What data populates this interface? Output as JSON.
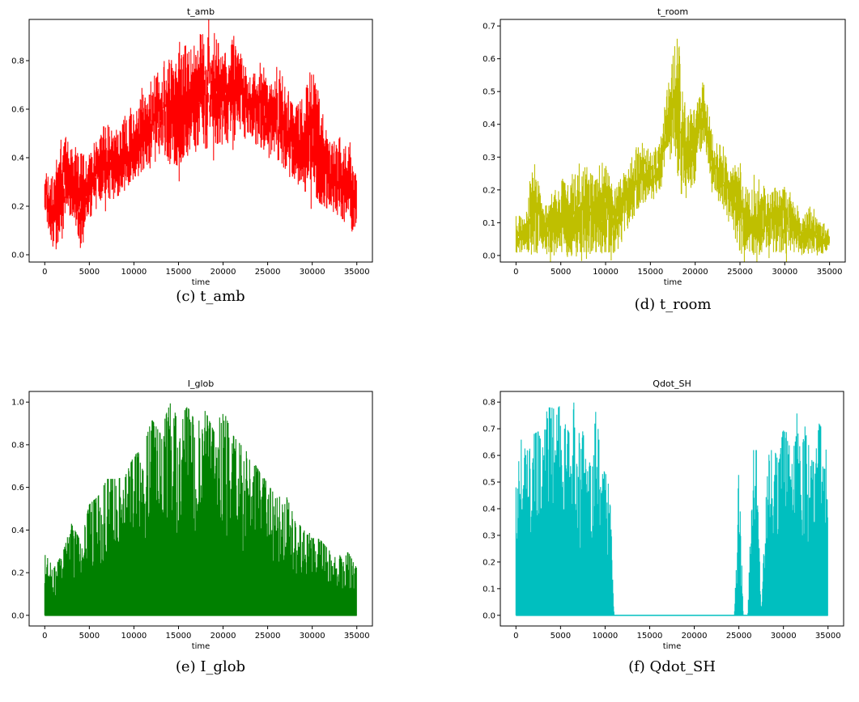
{
  "chart_data": [
    {
      "type": "line",
      "title": "t_amb",
      "xlabel": "time",
      "ylabel": "",
      "caption": "(c) t_amb",
      "color": "#ff0000",
      "xlim": [
        -1750,
        36750
      ],
      "ylim": [
        -0.03,
        0.97
      ],
      "xticks": [
        0,
        5000,
        10000,
        15000,
        20000,
        25000,
        30000,
        35000
      ],
      "yticks": [
        0.0,
        0.2,
        0.4,
        0.6,
        0.8
      ],
      "xtick_labels": [
        "0",
        "5000",
        "10000",
        "15000",
        "20000",
        "25000",
        "30000",
        "35000"
      ],
      "ytick_labels": [
        "0.0",
        "0.2",
        "0.4",
        "0.6",
        "0.8"
      ],
      "series": [
        {
          "x": [
            0,
            1000,
            2000,
            3000,
            4000,
            5000,
            6000,
            7000,
            8000,
            9000,
            10000,
            11000,
            12000,
            13000,
            14000,
            15000,
            16000,
            17000,
            18000,
            19000,
            20000,
            21000,
            22000,
            23000,
            24000,
            25000,
            26000,
            27000,
            28000,
            29000,
            30000,
            31000,
            32000,
            33000,
            34000,
            35000
          ],
          "low": [
            0.17,
            0.02,
            0.13,
            0.17,
            0.05,
            0.15,
            0.2,
            0.23,
            0.23,
            0.3,
            0.3,
            0.35,
            0.39,
            0.42,
            0.4,
            0.36,
            0.44,
            0.45,
            0.46,
            0.45,
            0.47,
            0.48,
            0.52,
            0.5,
            0.45,
            0.42,
            0.4,
            0.36,
            0.33,
            0.26,
            0.26,
            0.21,
            0.18,
            0.17,
            0.12,
            0.09
          ],
          "high": [
            0.33,
            0.29,
            0.48,
            0.42,
            0.4,
            0.39,
            0.46,
            0.54,
            0.48,
            0.55,
            0.58,
            0.66,
            0.66,
            0.75,
            0.78,
            0.82,
            0.83,
            0.87,
            0.94,
            0.86,
            0.82,
            0.87,
            0.82,
            0.73,
            0.77,
            0.69,
            0.72,
            0.69,
            0.6,
            0.65,
            0.77,
            0.58,
            0.46,
            0.45,
            0.45,
            0.3
          ]
        }
      ]
    },
    {
      "type": "line",
      "title": "t_room",
      "xlabel": "time",
      "ylabel": "",
      "caption": "(d) t_room",
      "color": "#bfbf00",
      "xlim": [
        -1750,
        36750
      ],
      "ylim": [
        -0.02,
        0.72
      ],
      "xticks": [
        0,
        5000,
        10000,
        15000,
        20000,
        25000,
        30000,
        35000
      ],
      "yticks": [
        0.0,
        0.1,
        0.2,
        0.3,
        0.4,
        0.5,
        0.6,
        0.7
      ],
      "xtick_labels": [
        "0",
        "5000",
        "10000",
        "15000",
        "20000",
        "25000",
        "30000",
        "35000"
      ],
      "ytick_labels": [
        "0.0",
        "0.1",
        "0.2",
        "0.3",
        "0.4",
        "0.5",
        "0.6",
        "0.7"
      ],
      "series": [
        {
          "x": [
            0,
            1000,
            2000,
            3000,
            4000,
            5000,
            6000,
            7000,
            8000,
            9000,
            10000,
            11000,
            12000,
            13000,
            14000,
            15000,
            16000,
            17000,
            18000,
            19000,
            20000,
            21000,
            22000,
            23000,
            24000,
            25000,
            26000,
            27000,
            28000,
            29000,
            30000,
            31000,
            32000,
            33000,
            34000,
            35000
          ],
          "low": [
            0.01,
            0.01,
            0.01,
            0.01,
            0.01,
            0.01,
            0.01,
            0.01,
            0.01,
            0.01,
            0.01,
            0.01,
            0.08,
            0.12,
            0.17,
            0.17,
            0.2,
            0.33,
            0.25,
            0.15,
            0.25,
            0.36,
            0.19,
            0.15,
            0.1,
            0.01,
            0.01,
            0.01,
            0.01,
            0.01,
            0.01,
            0.01,
            0.01,
            0.01,
            0.01,
            0.01
          ],
          "high": [
            0.12,
            0.1,
            0.29,
            0.14,
            0.18,
            0.23,
            0.21,
            0.25,
            0.26,
            0.23,
            0.27,
            0.2,
            0.25,
            0.28,
            0.35,
            0.3,
            0.34,
            0.52,
            0.68,
            0.4,
            0.45,
            0.52,
            0.36,
            0.33,
            0.25,
            0.26,
            0.18,
            0.24,
            0.17,
            0.21,
            0.2,
            0.15,
            0.12,
            0.14,
            0.09,
            0.08
          ]
        }
      ]
    },
    {
      "type": "area",
      "title": "I_glob",
      "xlabel": "time",
      "ylabel": "",
      "caption": "(e) I_glob",
      "color": "#008000",
      "xlim": [
        -1750,
        36750
      ],
      "ylim": [
        -0.05,
        1.05
      ],
      "xticks": [
        0,
        5000,
        10000,
        15000,
        20000,
        25000,
        30000,
        35000
      ],
      "yticks": [
        0.0,
        0.2,
        0.4,
        0.6,
        0.8,
        1.0
      ],
      "xtick_labels": [
        "0",
        "5000",
        "10000",
        "15000",
        "20000",
        "25000",
        "30000",
        "35000"
      ],
      "ytick_labels": [
        "0.0",
        "0.2",
        "0.4",
        "0.6",
        "0.8",
        "1.0"
      ],
      "series": [
        {
          "x": [
            0,
            1000,
            2000,
            3000,
            4000,
            5000,
            6000,
            7000,
            8000,
            9000,
            10000,
            11000,
            12000,
            13000,
            14000,
            15000,
            16000,
            17000,
            18000,
            19000,
            20000,
            21000,
            22000,
            23000,
            24000,
            25000,
            26000,
            27000,
            28000,
            29000,
            30000,
            31000,
            32000,
            33000,
            34000,
            35000
          ],
          "low": [
            0.0,
            0.0,
            0.0,
            0.0,
            0.0,
            0.0,
            0.0,
            0.0,
            0.0,
            0.0,
            0.0,
            0.0,
            0.0,
            0.0,
            0.0,
            0.0,
            0.0,
            0.0,
            0.0,
            0.0,
            0.0,
            0.0,
            0.0,
            0.0,
            0.0,
            0.0,
            0.0,
            0.0,
            0.0,
            0.0,
            0.0,
            0.0,
            0.0,
            0.0,
            0.0,
            0.0
          ],
          "high": [
            0.33,
            0.22,
            0.29,
            0.43,
            0.35,
            0.52,
            0.56,
            0.64,
            0.64,
            0.65,
            0.75,
            0.78,
            0.92,
            0.85,
            1.0,
            0.92,
            0.98,
            0.9,
            0.96,
            0.86,
            0.97,
            0.85,
            0.8,
            0.75,
            0.68,
            0.62,
            0.55,
            0.57,
            0.46,
            0.4,
            0.38,
            0.35,
            0.3,
            0.28,
            0.3,
            0.22
          ]
        }
      ]
    },
    {
      "type": "area",
      "title": "Qdot_SH",
      "xlabel": "time",
      "ylabel": "",
      "caption": "(f) Qdot_SH",
      "color": "#00bfbf",
      "xlim": [
        -1750,
        36750
      ],
      "ylim": [
        -0.04,
        0.84
      ],
      "xticks": [
        0,
        5000,
        10000,
        15000,
        20000,
        25000,
        30000,
        35000
      ],
      "yticks": [
        0.0,
        0.1,
        0.2,
        0.3,
        0.4,
        0.5,
        0.6,
        0.7,
        0.8
      ],
      "xtick_labels": [
        "0",
        "5000",
        "10000",
        "15000",
        "20000",
        "25000",
        "30000",
        "35000"
      ],
      "ytick_labels": [
        "0.0",
        "0.1",
        "0.2",
        "0.3",
        "0.4",
        "0.5",
        "0.6",
        "0.7",
        "0.8"
      ],
      "series": [
        {
          "x": [
            0,
            500,
            1000,
            1500,
            2000,
            2500,
            3000,
            3500,
            4000,
            4500,
            5000,
            5500,
            6000,
            6500,
            7000,
            7500,
            8000,
            8500,
            9000,
            9500,
            10000,
            10500,
            11000,
            15000,
            20000,
            24500,
            25000,
            25500,
            26000,
            26500,
            27000,
            27500,
            28000,
            28500,
            29000,
            29500,
            30000,
            30500,
            31000,
            31500,
            32000,
            32500,
            33000,
            33500,
            34000,
            34500,
            35000
          ],
          "low": [
            0.0,
            0.0,
            0.0,
            0.0,
            0.0,
            0.0,
            0.0,
            0.0,
            0.0,
            0.0,
            0.0,
            0.0,
            0.0,
            0.0,
            0.0,
            0.0,
            0.0,
            0.0,
            0.0,
            0.0,
            0.0,
            0.0,
            0.0,
            0.0,
            0.0,
            0.0,
            0.0,
            0.0,
            0.0,
            0.0,
            0.0,
            0.0,
            0.0,
            0.0,
            0.0,
            0.0,
            0.0,
            0.0,
            0.0,
            0.0,
            0.0,
            0.0,
            0.0,
            0.0,
            0.0,
            0.0,
            0.0
          ],
          "high": [
            0.48,
            0.65,
            0.7,
            0.62,
            0.68,
            0.69,
            0.63,
            0.78,
            0.78,
            0.77,
            0.79,
            0.72,
            0.68,
            0.8,
            0.7,
            0.69,
            0.6,
            0.55,
            0.79,
            0.58,
            0.53,
            0.53,
            0.0,
            0.0,
            0.0,
            0.0,
            0.56,
            0.0,
            0.0,
            0.62,
            0.62,
            0.0,
            0.55,
            0.62,
            0.62,
            0.57,
            0.72,
            0.67,
            0.56,
            0.76,
            0.6,
            0.73,
            0.59,
            0.57,
            0.72,
            0.69,
            0.58
          ]
        }
      ]
    }
  ]
}
